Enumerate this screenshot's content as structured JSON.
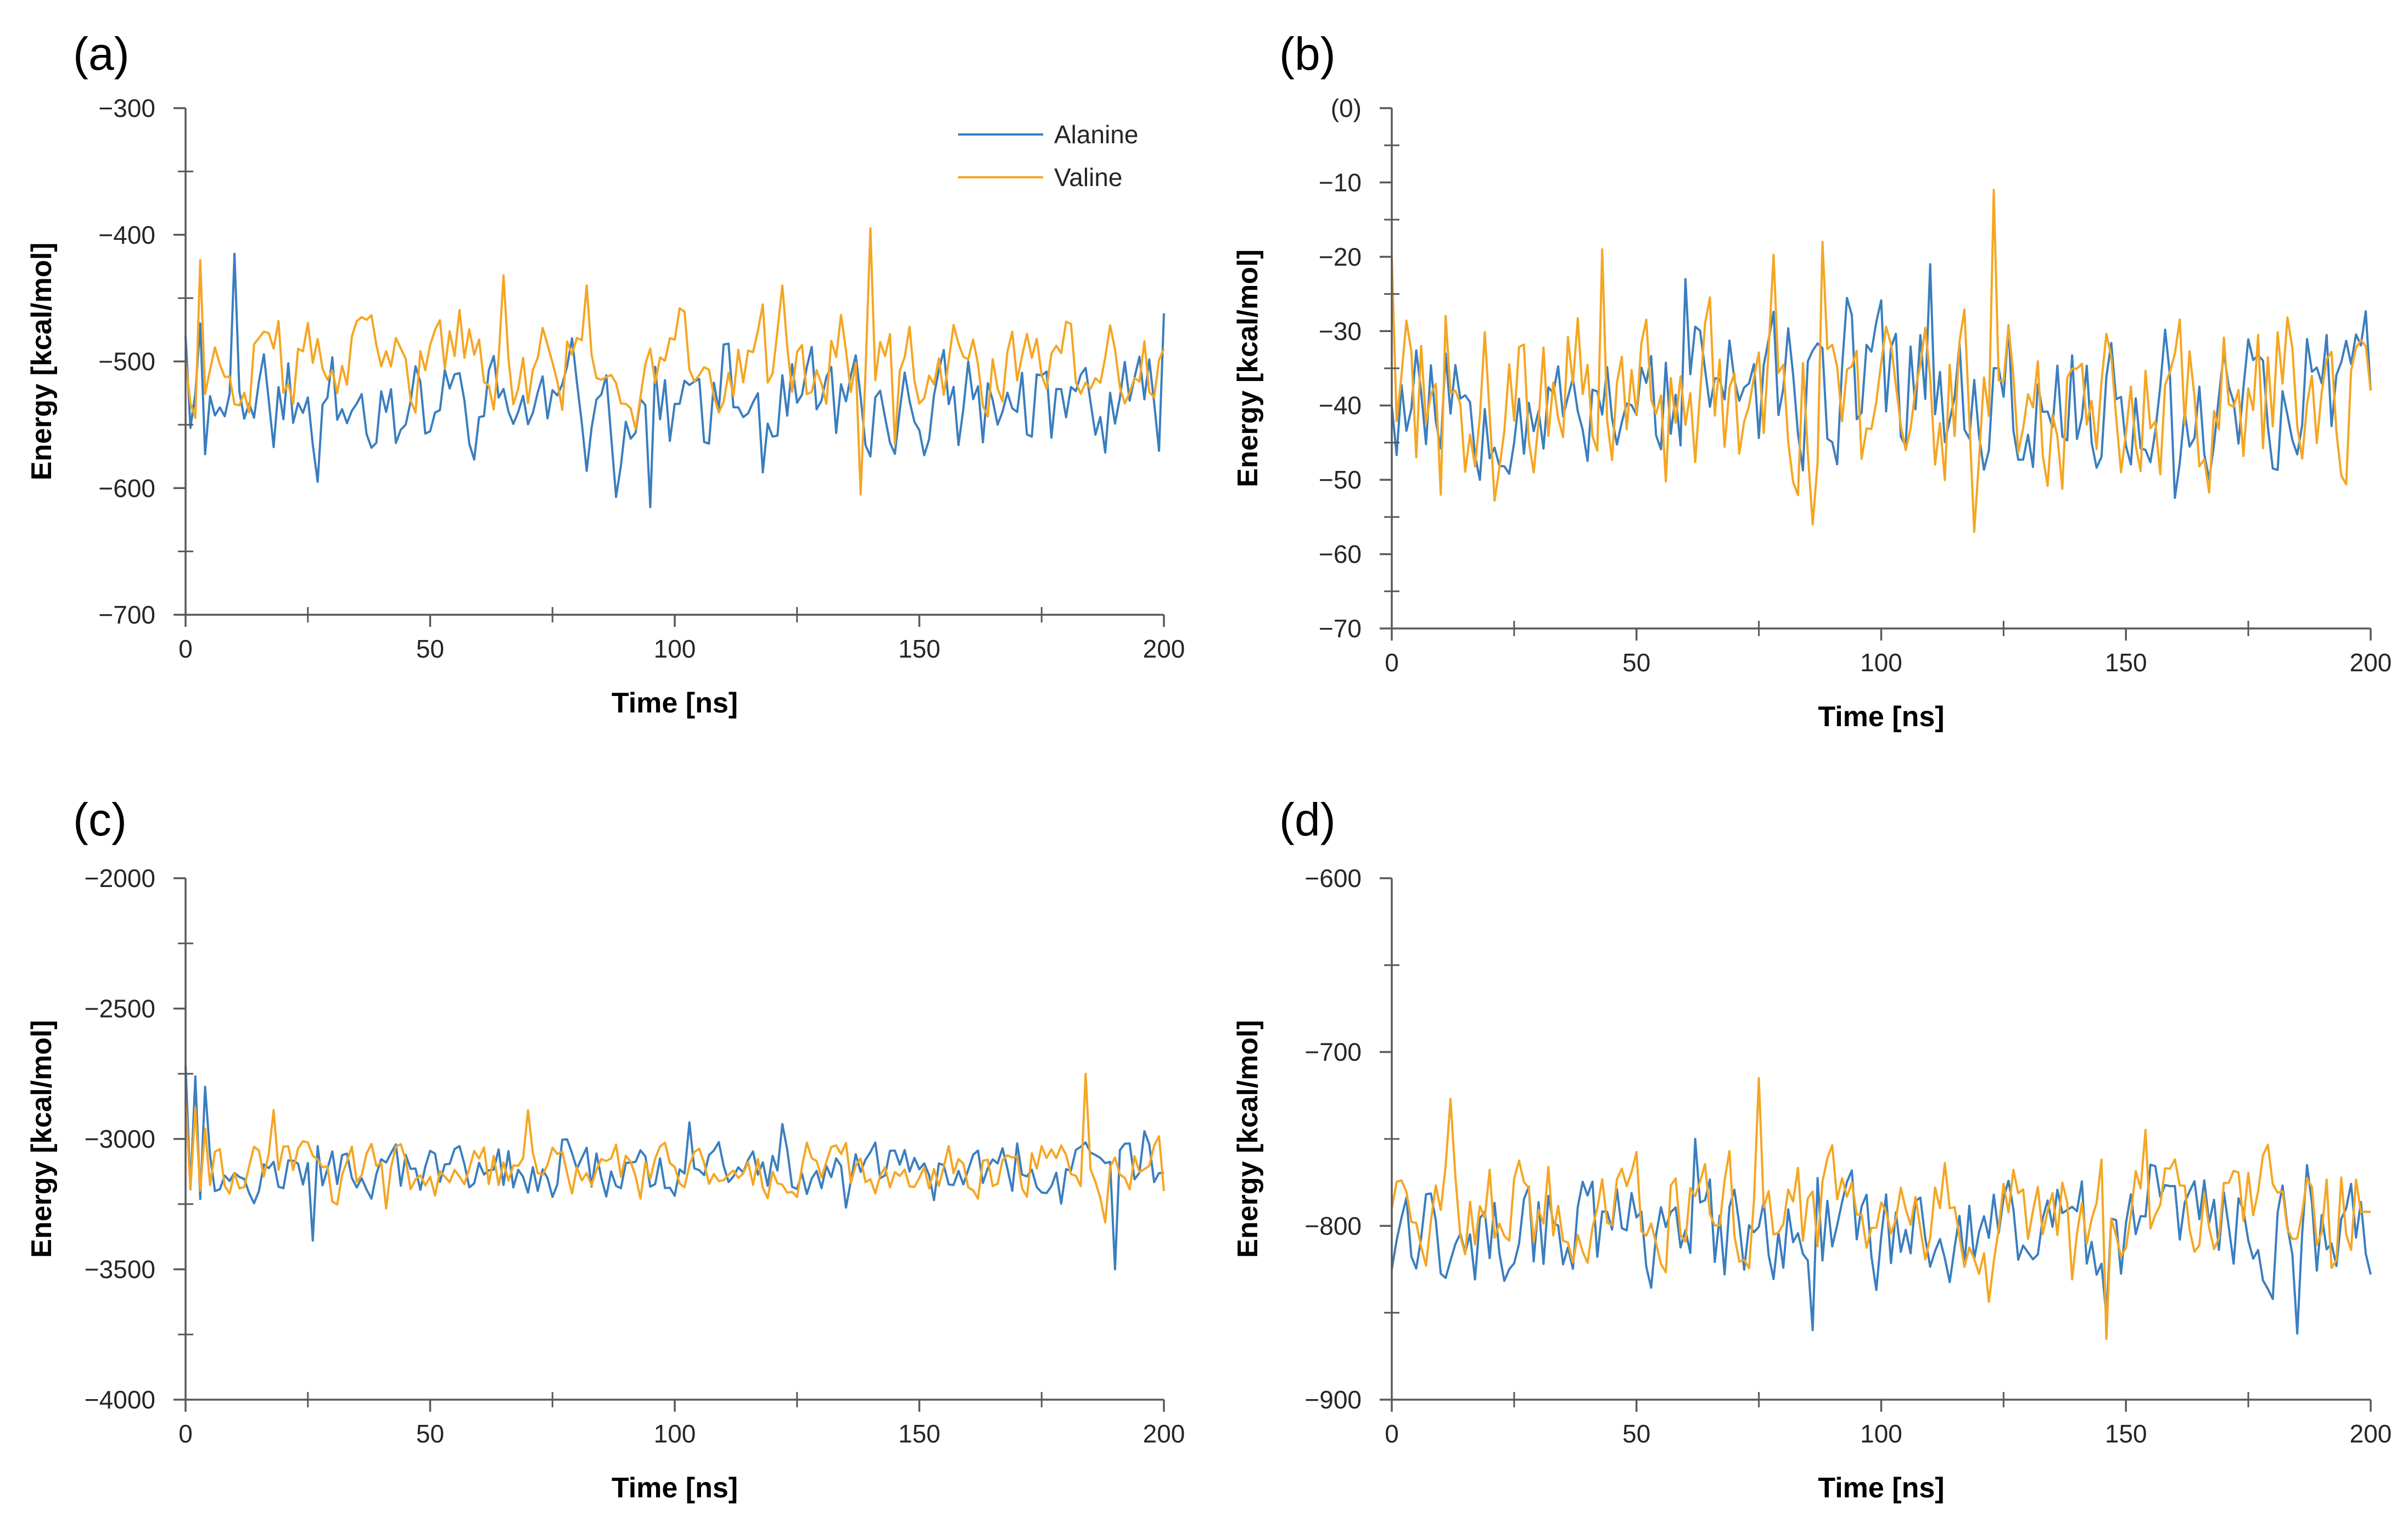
{
  "figure": {
    "legend": {
      "alanine_label": "Alanine",
      "valine_label": "Valine"
    }
  },
  "colors": {
    "alanine": "#3a7ebf",
    "valine": "#f5a623",
    "axis": "#595959",
    "text": "#262626"
  },
  "chart_data": [
    {
      "panel": "a",
      "panel_label": "(a)",
      "type": "line",
      "xlabel": "Time [ns]",
      "ylabel": "Energy [kcal/mol]",
      "xlim": [
        0,
        200
      ],
      "ylim": [
        -700,
        -300
      ],
      "xticks": [
        0,
        50,
        100,
        150,
        200
      ],
      "xtick_labels": [
        "0",
        "50",
        "100",
        "150",
        "200"
      ],
      "yticks": [
        -300,
        -400,
        -500,
        -600,
        -700
      ],
      "ytick_labels": [
        "−300",
        "−400",
        "−500",
        "−600",
        "−700"
      ],
      "minor_x": [
        25,
        75,
        125,
        175
      ],
      "minor_y": [
        -350,
        -450,
        -550,
        -650
      ],
      "legend": "top-right",
      "series": [
        {
          "name": "Alanine",
          "base": -535,
          "amp": 28,
          "seed": 11,
          "overrides": [
            [
              0,
              -480
            ],
            [
              3,
              -470
            ],
            [
              10,
              -415
            ],
            [
              27,
              -595
            ],
            [
              95,
              -615
            ],
            [
              88,
              -607
            ],
            [
              200,
              -462
            ],
            [
              140,
              -575
            ]
          ]
        },
        {
          "name": "Valine",
          "base": -505,
          "amp": 25,
          "seed": 37,
          "overrides": [
            [
              0,
              -500
            ],
            [
              3,
              -420
            ],
            [
              65,
              -432
            ],
            [
              82,
              -440
            ],
            [
              118,
              -455
            ],
            [
              122,
              -440
            ],
            [
              140,
              -395
            ],
            [
              138,
              -605
            ],
            [
              145,
              -565
            ],
            [
              200,
              -490
            ]
          ]
        }
      ]
    },
    {
      "panel": "b",
      "panel_label": "(b)",
      "type": "line",
      "xlabel": "Time [ns]",
      "ylabel": "Energy [kcal/mol]",
      "xlim": [
        0,
        200
      ],
      "ylim": [
        -70,
        0
      ],
      "xticks": [
        0,
        50,
        100,
        150,
        200
      ],
      "xtick_labels": [
        "0",
        "50",
        "100",
        "150",
        "200"
      ],
      "yticks": [
        0,
        -10,
        -20,
        -30,
        -40,
        -50,
        -60,
        -70
      ],
      "ytick_labels": [
        "(0)",
        "−10",
        "−20",
        "−30",
        "−40",
        "−50",
        "−60",
        "−70"
      ],
      "minor_x": [
        25,
        75,
        125,
        175
      ],
      "minor_y": [
        -5,
        -15,
        -25,
        -35,
        -45,
        -55,
        -65
      ],
      "series": [
        {
          "name": "Alanine",
          "base": -38,
          "amp": 7,
          "seed": 53,
          "overrides": [
            [
              0,
              -40
            ],
            [
              60,
              -23
            ],
            [
              110,
              -21
            ],
            [
              124,
              -35
            ],
            [
              200,
              -38
            ]
          ]
        },
        {
          "name": "Valine",
          "base": -39,
          "amp": 8,
          "seed": 71,
          "overrides": [
            [
              0,
              -20
            ],
            [
              10,
              -52
            ],
            [
              43,
              -19
            ],
            [
              86,
              -56
            ],
            [
              88,
              -18
            ],
            [
              123,
              -11
            ],
            [
              119,
              -57
            ],
            [
              200,
              -38
            ]
          ]
        }
      ]
    },
    {
      "panel": "c",
      "panel_label": "(c)",
      "type": "line",
      "xlabel": "Time [ns]",
      "ylabel": "Energy [kcal/mol]",
      "xlim": [
        0,
        200
      ],
      "ylim": [
        -4000,
        -2000
      ],
      "xticks": [
        0,
        50,
        100,
        150,
        200
      ],
      "xtick_labels": [
        "0",
        "50",
        "100",
        "150",
        "200"
      ],
      "yticks": [
        -2000,
        -2500,
        -3000,
        -3500,
        -4000
      ],
      "ytick_labels": [
        "−2000",
        "−2500",
        "−3000",
        "−3500",
        "−4000"
      ],
      "minor_x": [
        25,
        75,
        125,
        175
      ],
      "minor_y": [
        -2250,
        -2750,
        -3250,
        -3750
      ],
      "series": [
        {
          "name": "Alanine",
          "base": -3130,
          "amp": 70,
          "seed": 97,
          "overrides": [
            [
              0,
              -2720
            ],
            [
              2,
              -2760
            ],
            [
              4,
              -2800
            ],
            [
              6,
              -3200
            ],
            [
              26,
              -3390
            ],
            [
              190,
              -3500
            ],
            [
              196,
              -2970
            ],
            [
              200,
              -3130
            ]
          ]
        },
        {
          "name": "Valine",
          "base": -3120,
          "amp": 70,
          "seed": 113,
          "overrides": [
            [
              0,
              -2850
            ],
            [
              2,
              -2880
            ],
            [
              4,
              -2960
            ],
            [
              18,
              -2890
            ],
            [
              70,
              -2890
            ],
            [
              184,
              -2750
            ],
            [
              188,
              -3320
            ],
            [
              200,
              -3200
            ]
          ]
        }
      ]
    },
    {
      "panel": "d",
      "panel_label": "(d)",
      "type": "line",
      "xlabel": "Time [ns]",
      "ylabel": "Energy [kcal/mol]",
      "xlim": [
        0,
        200
      ],
      "ylim": [
        -900,
        -600
      ],
      "xticks": [
        0,
        50,
        100,
        150,
        200
      ],
      "xtick_labels": [
        "0",
        "50",
        "100",
        "150",
        "200"
      ],
      "yticks": [
        -600,
        -700,
        -800,
        -900
      ],
      "ytick_labels": [
        "−600",
        "−700",
        "−800",
        "−900"
      ],
      "minor_x": [
        25,
        75,
        125,
        175
      ],
      "minor_y": [
        -650,
        -750,
        -850
      ],
      "series": [
        {
          "name": "Alanine",
          "base": -805,
          "amp": 22,
          "seed": 131,
          "overrides": [
            [
              0,
              -825
            ],
            [
              62,
              -750
            ],
            [
              86,
              -860
            ],
            [
              185,
              -862
            ],
            [
              200,
              -828
            ]
          ]
        },
        {
          "name": "Valine",
          "base": -790,
          "amp": 22,
          "seed": 149,
          "overrides": [
            [
              0,
              -790
            ],
            [
              12,
              -727
            ],
            [
              75,
              -715
            ],
            [
              146,
              -865
            ],
            [
              200,
              -792
            ]
          ]
        }
      ]
    }
  ]
}
